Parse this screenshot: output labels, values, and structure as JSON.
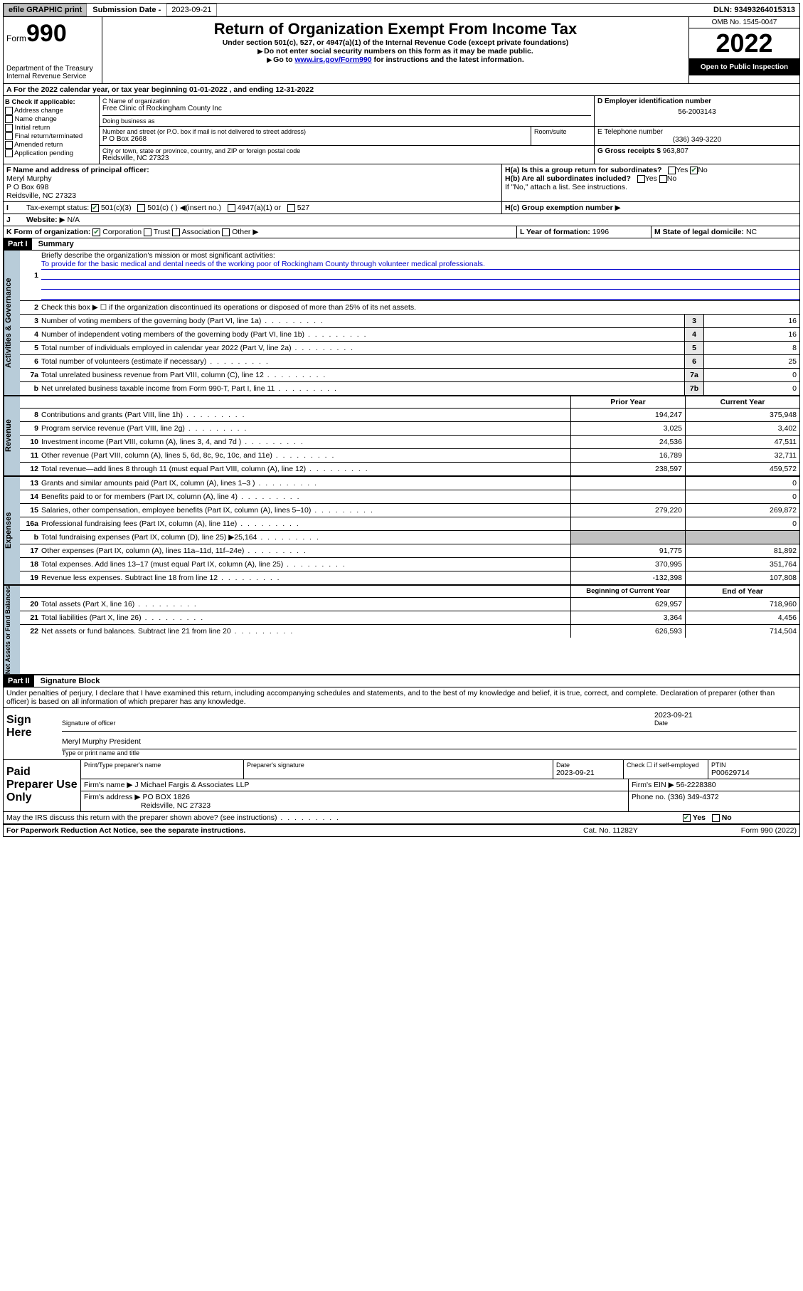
{
  "topbar": {
    "efile": "efile GRAPHIC print",
    "sub_label": "Submission Date - ",
    "sub_date": "2023-09-21",
    "dln": "DLN: 93493264015313"
  },
  "header": {
    "form_prefix": "Form",
    "form_num": "990",
    "dept": "Department of the Treasury",
    "irs": "Internal Revenue Service",
    "title": "Return of Organization Exempt From Income Tax",
    "sub1": "Under section 501(c), 527, or 4947(a)(1) of the Internal Revenue Code (except private foundations)",
    "sub2": "Do not enter social security numbers on this form as it may be made public.",
    "sub3_pre": "Go to ",
    "sub3_link": "www.irs.gov/Form990",
    "sub3_post": " for instructions and the latest information.",
    "omb": "OMB No. 1545-0047",
    "year": "2022",
    "open": "Open to Public Inspection"
  },
  "lineA": "A For the 2022 calendar year, or tax year beginning 01-01-2022   , and ending 12-31-2022",
  "boxB": {
    "title": "B Check if applicable:",
    "items": [
      "Address change",
      "Name change",
      "Initial return",
      "Final return/terminated",
      "Amended return",
      "Application pending"
    ]
  },
  "boxC": {
    "label": "C Name of organization",
    "name": "Free Clinic of Rockingham County Inc",
    "dba_label": "Doing business as",
    "street_label": "Number and street (or P.O. box if mail is not delivered to street address)",
    "room_label": "Room/suite",
    "street": "P O Box 2668",
    "city_label": "City or town, state or province, country, and ZIP or foreign postal code",
    "city": "Reidsville, NC  27323"
  },
  "boxD": {
    "label": "D Employer identification number",
    "val": "56-2003143"
  },
  "boxE": {
    "label": "E Telephone number",
    "val": "(336) 349-3220"
  },
  "boxG": {
    "label": "G Gross receipts $",
    "val": "963,807"
  },
  "boxF": {
    "label": "F Name and address of principal officer:",
    "name": "Meryl Murphy",
    "addr1": "P O Box 698",
    "addr2": "Reidsville, NC  27323"
  },
  "boxH": {
    "a": "H(a)  Is this a group return for subordinates?",
    "b": "H(b)  Are all subordinates included?",
    "note": "If \"No,\" attach a list. See instructions.",
    "c": "H(c)  Group exemption number"
  },
  "boxI": {
    "label": "Tax-exempt status:",
    "opts": [
      "501(c)(3)",
      "501(c) (   )",
      "(insert no.)",
      "4947(a)(1) or",
      "527"
    ]
  },
  "boxJ": {
    "label": "Website:",
    "val": "N/A"
  },
  "boxK": {
    "label": "K Form of organization:",
    "opts": [
      "Corporation",
      "Trust",
      "Association",
      "Other"
    ]
  },
  "boxL": {
    "label": "L Year of formation:",
    "val": "1996"
  },
  "boxM": {
    "label": "M State of legal domicile:",
    "val": "NC"
  },
  "part1": {
    "header": "Part I",
    "title": "Summary",
    "line1_label": "Briefly describe the organization's mission or most significant activities:",
    "mission": "To provide for the basic medical and dental needs of the working poor of Rockingham County through volunteer medical professionals.",
    "line2": "Check this box ▶ ☐  if the organization discontinued its operations or disposed of more than 25% of its net assets.",
    "rows_gov": [
      {
        "n": "3",
        "t": "Number of voting members of the governing body (Part VI, line 1a)",
        "box": "3",
        "v": "16"
      },
      {
        "n": "4",
        "t": "Number of independent voting members of the governing body (Part VI, line 1b)",
        "box": "4",
        "v": "16"
      },
      {
        "n": "5",
        "t": "Total number of individuals employed in calendar year 2022 (Part V, line 2a)",
        "box": "5",
        "v": "8"
      },
      {
        "n": "6",
        "t": "Total number of volunteers (estimate if necessary)",
        "box": "6",
        "v": "25"
      },
      {
        "n": "7a",
        "t": "Total unrelated business revenue from Part VIII, column (C), line 12",
        "box": "7a",
        "v": "0"
      },
      {
        "n": "b",
        "t": "Net unrelated business taxable income from Form 990-T, Part I, line 11",
        "box": "7b",
        "v": "0"
      }
    ],
    "col_prior": "Prior Year",
    "col_current": "Current Year",
    "rows_rev": [
      {
        "n": "8",
        "t": "Contributions and grants (Part VIII, line 1h)",
        "p": "194,247",
        "c": "375,948"
      },
      {
        "n": "9",
        "t": "Program service revenue (Part VIII, line 2g)",
        "p": "3,025",
        "c": "3,402"
      },
      {
        "n": "10",
        "t": "Investment income (Part VIII, column (A), lines 3, 4, and 7d )",
        "p": "24,536",
        "c": "47,511"
      },
      {
        "n": "11",
        "t": "Other revenue (Part VIII, column (A), lines 5, 6d, 8c, 9c, 10c, and 11e)",
        "p": "16,789",
        "c": "32,711"
      },
      {
        "n": "12",
        "t": "Total revenue—add lines 8 through 11 (must equal Part VIII, column (A), line 12)",
        "p": "238,597",
        "c": "459,572"
      }
    ],
    "rows_exp": [
      {
        "n": "13",
        "t": "Grants and similar amounts paid (Part IX, column (A), lines 1–3 )",
        "p": "",
        "c": "0"
      },
      {
        "n": "14",
        "t": "Benefits paid to or for members (Part IX, column (A), line 4)",
        "p": "",
        "c": "0"
      },
      {
        "n": "15",
        "t": "Salaries, other compensation, employee benefits (Part IX, column (A), lines 5–10)",
        "p": "279,220",
        "c": "269,872"
      },
      {
        "n": "16a",
        "t": "Professional fundraising fees (Part IX, column (A), line 11e)",
        "p": "",
        "c": "0"
      },
      {
        "n": "b",
        "t": "Total fundraising expenses (Part IX, column (D), line 25) ▶25,164",
        "p": "gray",
        "c": "gray"
      },
      {
        "n": "17",
        "t": "Other expenses (Part IX, column (A), lines 11a–11d, 11f–24e)",
        "p": "91,775",
        "c": "81,892"
      },
      {
        "n": "18",
        "t": "Total expenses. Add lines 13–17 (must equal Part IX, column (A), line 25)",
        "p": "370,995",
        "c": "351,764"
      },
      {
        "n": "19",
        "t": "Revenue less expenses. Subtract line 18 from line 12",
        "p": "-132,398",
        "c": "107,808"
      }
    ],
    "col_begin": "Beginning of Current Year",
    "col_end": "End of Year",
    "rows_net": [
      {
        "n": "20",
        "t": "Total assets (Part X, line 16)",
        "p": "629,957",
        "c": "718,960"
      },
      {
        "n": "21",
        "t": "Total liabilities (Part X, line 26)",
        "p": "3,364",
        "c": "4,456"
      },
      {
        "n": "22",
        "t": "Net assets or fund balances. Subtract line 21 from line 20",
        "p": "626,593",
        "c": "714,504"
      }
    ],
    "vlabels": {
      "gov": "Activities & Governance",
      "rev": "Revenue",
      "exp": "Expenses",
      "net": "Net Assets or Fund Balances"
    }
  },
  "part2": {
    "header": "Part II",
    "title": "Signature Block",
    "decl": "Under penalties of perjury, I declare that I have examined this return, including accompanying schedules and statements, and to the best of my knowledge and belief, it is true, correct, and complete. Declaration of preparer (other than officer) is based on all information of which preparer has any knowledge.",
    "sign_here": "Sign Here",
    "sig_officer": "Signature of officer",
    "sig_date": "Date",
    "sig_date_val": "2023-09-21",
    "sig_name": "Meryl Murphy  President",
    "sig_name_label": "Type or print name and title"
  },
  "prep": {
    "label": "Paid Preparer Use Only",
    "h1": "Print/Type preparer's name",
    "h2": "Preparer's signature",
    "h3": "Date",
    "h3v": "2023-09-21",
    "h4": "Check ☐ if self-employed",
    "h5": "PTIN",
    "h5v": "P00629714",
    "firm_label": "Firm's name    ▶",
    "firm": "J Michael Fargis & Associates LLP",
    "ein_label": "Firm's EIN ▶",
    "ein": "56-2228380",
    "addr_label": "Firm's address ▶",
    "addr1": "PO BOX 1826",
    "addr2": "Reidsville, NC  27323",
    "phone_label": "Phone no.",
    "phone": "(336) 349-4372"
  },
  "footer": {
    "discuss": "May the IRS discuss this return with the preparer shown above? (see instructions)",
    "yes": "Yes",
    "no": "No",
    "paperwork": "For Paperwork Reduction Act Notice, see the separate instructions.",
    "cat": "Cat. No. 11282Y",
    "form": "Form 990 (2022)"
  }
}
